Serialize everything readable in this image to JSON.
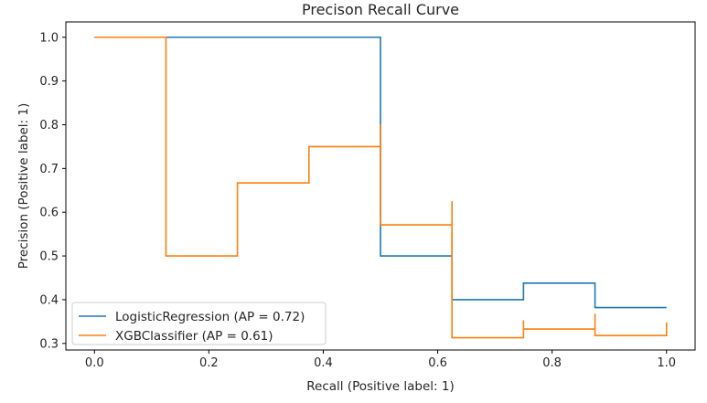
{
  "chart_data": {
    "type": "line",
    "title": "Precison Recall Curve",
    "xlabel": "Recall (Positive label: 1)",
    "ylabel": "Precision (Positive label: 1)",
    "xlim": [
      -0.05,
      1.05
    ],
    "ylim": [
      0.285,
      1.035
    ],
    "xticks": [
      0.0,
      0.2,
      0.4,
      0.6,
      0.8,
      1.0
    ],
    "xtick_labels": [
      "0.0",
      "0.2",
      "0.4",
      "0.6",
      "0.8",
      "1.0"
    ],
    "yticks": [
      0.3,
      0.4,
      0.5,
      0.6,
      0.7,
      0.8,
      0.9,
      1.0
    ],
    "ytick_labels": [
      "0.3",
      "0.4",
      "0.5",
      "0.6",
      "0.7",
      "0.8",
      "0.9",
      "1.0"
    ],
    "grid": false,
    "legend_position": "lower-left",
    "drawstyle": "steps-post",
    "series": [
      {
        "name": "LogisticRegression (AP = 0.72)",
        "color": "#1f77b4",
        "x": [
          0.0,
          0.5,
          0.5,
          0.625,
          0.625,
          0.75,
          0.75,
          0.875,
          0.875,
          1.0
        ],
        "y": [
          1.0,
          1.0,
          0.5,
          0.556,
          0.4,
          0.4,
          0.438,
          0.438,
          0.382,
          0.382
        ]
      },
      {
        "name": "XGBClassifier (AP = 0.61)",
        "color": "#ff7f0e",
        "x": [
          0.0,
          0.125,
          0.125,
          0.25,
          0.375,
          0.5,
          0.5,
          0.625,
          0.625,
          0.75,
          0.75,
          0.875,
          0.875,
          1.0
        ],
        "y": [
          1.0,
          1.0,
          0.5,
          0.667,
          0.75,
          0.8,
          0.571,
          0.625,
          0.313,
          0.353,
          0.333,
          0.368,
          0.318,
          0.348
        ]
      }
    ]
  }
}
